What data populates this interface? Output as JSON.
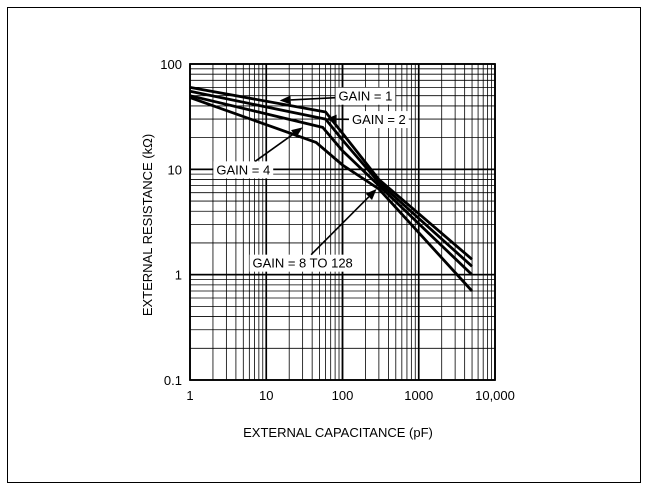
{
  "chart_data": {
    "type": "line",
    "xlabel": "EXTERNAL CAPACITANCE (pF)",
    "ylabel": "EXTERNAL RESISTANCE (kΩ)",
    "x_scale": "log",
    "y_scale": "log",
    "xlim": [
      1,
      10000
    ],
    "ylim": [
      0.1,
      100
    ],
    "x_ticks": [
      "1",
      "10",
      "100",
      "1000",
      "10,000"
    ],
    "y_ticks": [
      "100",
      "10",
      "1",
      "0.1"
    ],
    "grid": true,
    "series": [
      {
        "name": "GAIN = 1",
        "x": [
          1,
          60,
          100,
          300,
          5000
        ],
        "y": [
          60,
          35,
          22,
          8,
          1.4
        ]
      },
      {
        "name": "GAIN = 2",
        "x": [
          1,
          60,
          100,
          300,
          5000
        ],
        "y": [
          55,
          30,
          19,
          7.5,
          1.2
        ]
      },
      {
        "name": "GAIN = 4",
        "x": [
          1,
          55,
          100,
          300,
          5000
        ],
        "y": [
          50,
          25,
          15,
          7,
          1.0
        ]
      },
      {
        "name": "GAIN = 8 TO 128",
        "x": [
          1,
          45,
          100,
          300,
          5000
        ],
        "y": [
          48,
          18,
          11,
          6.5,
          0.7
        ]
      }
    ],
    "annotations": [
      {
        "text": "GAIN = 1",
        "x": 200,
        "y": 50,
        "point_x": 15,
        "point_y": 45
      },
      {
        "text": "GAIN = 2",
        "x": 300,
        "y": 30,
        "point_x": 60,
        "point_y": 30
      },
      {
        "text": "GAIN = 4",
        "x": 5,
        "y": 10,
        "point_x": 30,
        "point_y": 25
      },
      {
        "text": "GAIN = 8 TO 128",
        "x": 30,
        "y": 1.3,
        "point_x": 280,
        "point_y": 6.5
      }
    ]
  }
}
